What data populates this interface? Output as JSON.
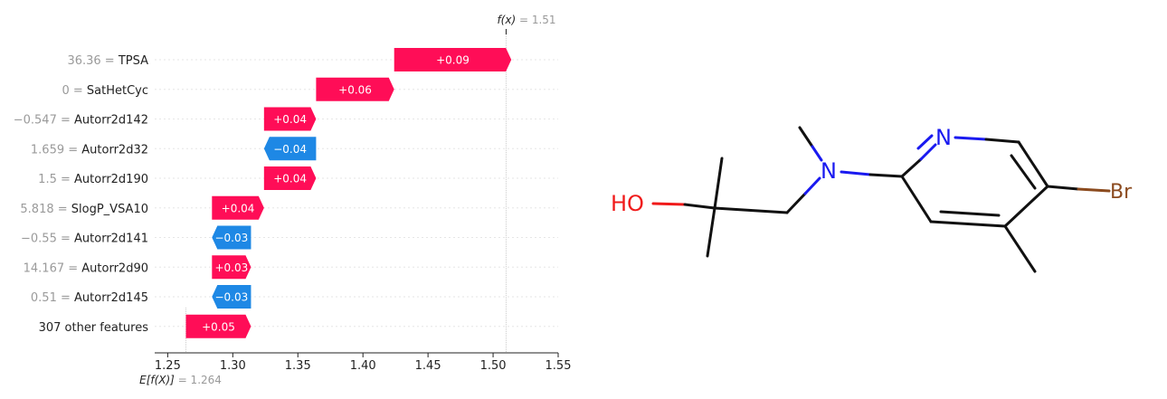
{
  "chart_data": {
    "type": "waterfall",
    "base_value": 1.264,
    "base_label": "E[f(X)]",
    "output_value": 1.51,
    "output_label": "f(x)",
    "xlim": [
      1.24,
      1.55
    ],
    "xticks": [
      1.25,
      1.3,
      1.35,
      1.4,
      1.45,
      1.5,
      1.55
    ],
    "xtick_labels": [
      "1.25",
      "1.30",
      "1.35",
      "1.40",
      "1.45",
      "1.50",
      "1.55"
    ],
    "colors": {
      "positive": "#ff0d57",
      "negative": "#1e88e5"
    },
    "features": [
      {
        "value": "36.36",
        "name": "TPSA",
        "contribution": 0.09,
        "label": "+0.09"
      },
      {
        "value": "0",
        "name": "SatHetCyc",
        "contribution": 0.06,
        "label": "+0.06"
      },
      {
        "value": "−0.547",
        "name": "Autorr2d142",
        "contribution": 0.04,
        "label": "+0.04"
      },
      {
        "value": "1.659",
        "name": "Autorr2d32",
        "contribution": -0.04,
        "label": "−0.04"
      },
      {
        "value": "1.5",
        "name": "Autorr2d190",
        "contribution": 0.04,
        "label": "+0.04"
      },
      {
        "value": "5.818",
        "name": "SlogP_VSA10",
        "contribution": 0.04,
        "label": "+0.04"
      },
      {
        "value": "−0.55",
        "name": "Autorr2d141",
        "contribution": -0.03,
        "label": "−0.03"
      },
      {
        "value": "14.167",
        "name": "Autorr2d90",
        "contribution": 0.03,
        "label": "+0.03"
      },
      {
        "value": "0.51",
        "name": "Autorr2d145",
        "contribution": -0.03,
        "label": "−0.03"
      },
      {
        "value": "",
        "name": "307 other features",
        "contribution": 0.05,
        "label": "+0.05"
      }
    ]
  },
  "molecule": {
    "atoms": {
      "hydroxyl": "HO",
      "nitrogen_amine": "N",
      "nitrogen_ring": "N",
      "bromine": "Br"
    }
  }
}
